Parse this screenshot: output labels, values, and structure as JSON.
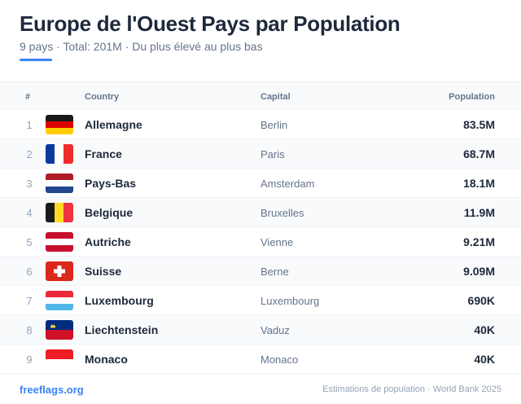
{
  "header": {
    "title": "Europe de l'Ouest Pays par Population",
    "subtitle": "9 pays · Total: 201M · Du plus élevé au plus bas"
  },
  "table": {
    "columns": {
      "rank": "#",
      "country": "Country",
      "capital": "Capital",
      "population": "Population"
    },
    "rows": [
      {
        "rank": "1",
        "flag": "flag-germany-icon",
        "country": "Allemagne",
        "capital": "Berlin",
        "population": "83.5M"
      },
      {
        "rank": "2",
        "flag": "flag-france-icon",
        "country": "France",
        "capital": "Paris",
        "population": "68.7M"
      },
      {
        "rank": "3",
        "flag": "flag-netherlands-icon",
        "country": "Pays-Bas",
        "capital": "Amsterdam",
        "population": "18.1M"
      },
      {
        "rank": "4",
        "flag": "flag-belgium-icon",
        "country": "Belgique",
        "capital": "Bruxelles",
        "population": "11.9M"
      },
      {
        "rank": "5",
        "flag": "flag-austria-icon",
        "country": "Autriche",
        "capital": "Vienne",
        "population": "9.21M"
      },
      {
        "rank": "6",
        "flag": "flag-switzerland-icon",
        "country": "Suisse",
        "capital": "Berne",
        "population": "9.09M"
      },
      {
        "rank": "7",
        "flag": "flag-luxembourg-icon",
        "country": "Luxembourg",
        "capital": "Luxembourg",
        "population": "690K"
      },
      {
        "rank": "8",
        "flag": "flag-liechtenstein-icon",
        "country": "Liechtenstein",
        "capital": "Vaduz",
        "population": "40K"
      },
      {
        "rank": "9",
        "flag": "flag-monaco-icon",
        "country": "Monaco",
        "capital": "Monaco",
        "population": "40K"
      }
    ]
  },
  "footer": {
    "site": "freeflags.org",
    "source": "Estimations de population · World Bank 2025"
  },
  "colors": {
    "accent": "#3b82f6",
    "text": "#1e293b",
    "muted": "#64748b"
  }
}
